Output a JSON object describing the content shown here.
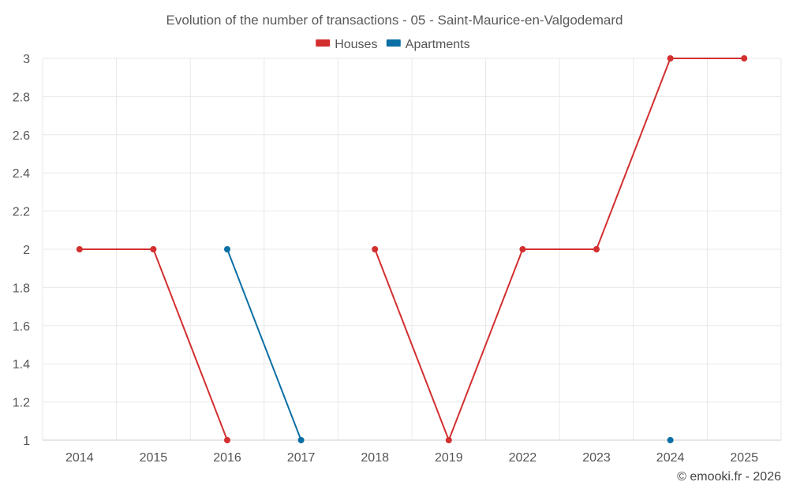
{
  "chart_data": {
    "type": "line",
    "title": "Evolution of the number of transactions - 05 - Saint-Maurice-en-Valgodemard",
    "categories": [
      "2014",
      "2015",
      "2016",
      "2017",
      "2018",
      "2019",
      "2022",
      "2023",
      "2024",
      "2025"
    ],
    "ylim": [
      1,
      3
    ],
    "yticks": [
      "1",
      "1.2",
      "1.4",
      "1.6",
      "1.8",
      "2",
      "2.2",
      "2.4",
      "2.6",
      "2.8",
      "3"
    ],
    "grid": true,
    "legend_position": "top-center",
    "series": [
      {
        "name": "Houses",
        "color": "#d32f2f",
        "values": [
          2,
          2,
          1,
          null,
          2,
          1,
          2,
          2,
          3,
          3
        ]
      },
      {
        "name": "Apartments",
        "color": "#0b6fa4",
        "values": [
          null,
          null,
          2,
          1,
          null,
          null,
          null,
          null,
          1,
          null
        ]
      }
    ]
  },
  "credit": "© emooki.fr - 2026"
}
